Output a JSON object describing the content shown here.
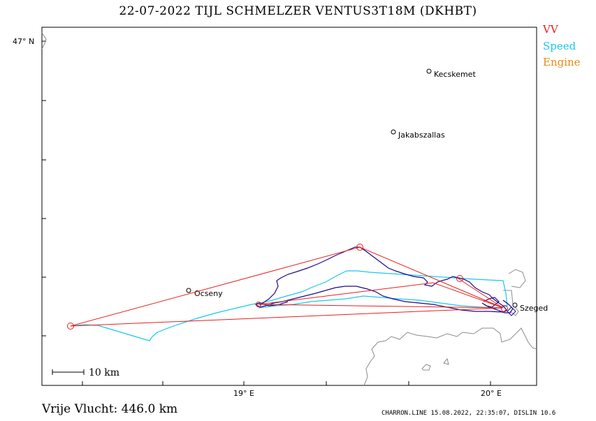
{
  "header": {
    "title": "22-07-2022   TIJL SCHMELZER   VENTUS3T18M (DKHBT)"
  },
  "legend": [
    {
      "label": "VV",
      "color": "#e8201c"
    },
    {
      "label": "Speed",
      "color": "#19c8f0"
    },
    {
      "label": "Engine",
      "color": "#e88a10"
    }
  ],
  "map": {
    "lat_label": "47° N",
    "lon_labels": [
      "19° E",
      "20° E"
    ],
    "places": [
      "Kecskemet",
      "Jakabszallas",
      "Ocseny",
      "Szeged"
    ],
    "scale_label": "10 km"
  },
  "footer": {
    "distance": "Vrije Vlucht:  446.0 km",
    "credit": "CHARRON.LINE 15.08.2022, 22:35:07, DISLIN 10.6"
  },
  "colors": {
    "route": "#e8201c",
    "track_speed": "#19c8f0",
    "track_main": "#1e0a8c",
    "border": "#8c8c8c"
  }
}
